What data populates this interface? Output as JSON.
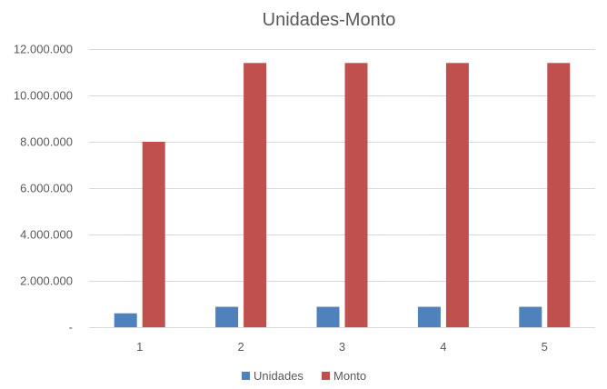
{
  "chart_data": {
    "type": "bar",
    "title": "Unidades-Monto",
    "xlabel": "",
    "ylabel": "",
    "categories": [
      "1",
      "2",
      "3",
      "4",
      "5"
    ],
    "series": [
      {
        "name": "Unidades",
        "color": "#4f81bd",
        "values": [
          600000,
          880000,
          880000,
          880000,
          880000
        ]
      },
      {
        "name": "Monto",
        "color": "#c0504d",
        "values": [
          8000000,
          11400000,
          11400000,
          11400000,
          11400000
        ]
      }
    ],
    "ylim": [
      0,
      12000000
    ],
    "y_ticks": [
      {
        "value": 0,
        "label": "-"
      },
      {
        "value": 2000000,
        "label": "2.000.000"
      },
      {
        "value": 4000000,
        "label": "4.000.000"
      },
      {
        "value": 6000000,
        "label": "6.000.000"
      },
      {
        "value": 8000000,
        "label": "8.000.000"
      },
      {
        "value": 10000000,
        "label": "10.000.000"
      },
      {
        "value": 12000000,
        "label": "12.000.000"
      }
    ],
    "grid": true,
    "legend_position": "bottom"
  }
}
